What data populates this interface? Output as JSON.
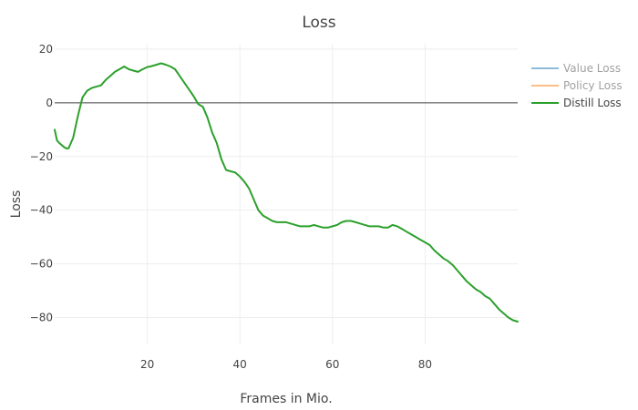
{
  "chart_data": {
    "type": "line",
    "title": "Loss",
    "xlabel": "Frames in Mio.",
    "ylabel": "Loss",
    "xlim": [
      0,
      100
    ],
    "ylim": [
      -90,
      22
    ],
    "x_ticks": [
      20,
      40,
      60,
      80
    ],
    "y_ticks": [
      20,
      0,
      -20,
      -40,
      -60,
      -80
    ],
    "x_tick_labels": [
      "20",
      "40",
      "60",
      "80"
    ],
    "y_tick_labels": [
      "20",
      "0",
      "−20",
      "−40",
      "−60",
      "−80"
    ],
    "grid": true,
    "legend_position": "top-right",
    "series": [
      {
        "name": "Value Loss",
        "color": "#1f77b4",
        "visible": false,
        "x": [],
        "y": []
      },
      {
        "name": "Policy Loss",
        "color": "#ff7f0e",
        "visible": false,
        "x": [],
        "y": []
      },
      {
        "name": "Distill Loss",
        "color": "#2ca02c",
        "visible": true,
        "x": [
          0,
          0.5,
          1,
          2,
          2.5,
          3,
          4,
          5,
          6,
          7,
          8,
          9,
          10,
          11,
          12,
          13,
          14,
          15,
          16,
          17,
          18,
          19,
          20,
          21,
          22,
          23,
          24,
          25,
          26,
          27,
          28,
          29,
          30,
          31,
          32,
          33,
          34,
          35,
          36,
          37,
          38,
          39,
          40,
          41,
          42,
          43,
          44,
          45,
          46,
          47,
          48,
          49,
          50,
          51,
          52,
          53,
          54,
          55,
          56,
          57,
          58,
          59,
          60,
          61,
          62,
          63,
          64,
          65,
          66,
          67,
          68,
          69,
          70,
          71,
          72,
          73,
          74,
          75,
          76,
          77,
          78,
          79,
          80,
          81,
          82,
          83,
          84,
          85,
          86,
          87,
          88,
          89,
          90,
          91,
          92,
          93,
          94,
          95,
          96,
          97,
          98,
          99,
          100
        ],
        "y": [
          -10,
          -14,
          -15,
          -16.5,
          -17,
          -17,
          -13,
          -5,
          2,
          4.5,
          5.5,
          6,
          6.5,
          8.5,
          10,
          11.5,
          12.5,
          13.5,
          12.5,
          12,
          11.5,
          12.5,
          13.3,
          13.7,
          14.2,
          14.7,
          14.2,
          13.5,
          12.5,
          10,
          7.5,
          5,
          2.5,
          -0.5,
          -1.5,
          -5.5,
          -11,
          -15,
          -21,
          -25,
          -25.5,
          -26,
          -27.5,
          -29.5,
          -32,
          -36,
          -40,
          -42,
          -43,
          -44,
          -44.5,
          -44.5,
          -44.5,
          -45,
          -45.5,
          -46,
          -46,
          -46,
          -45.5,
          -46,
          -46.5,
          -46.5,
          -46,
          -45.5,
          -44.5,
          -44,
          -44,
          -44.5,
          -45,
          -45.5,
          -46,
          -46,
          -46,
          -46.5,
          -46.5,
          -45.5,
          -46,
          -47,
          -48,
          -49,
          -50,
          -51,
          -52,
          -53,
          -55,
          -56.5,
          -58,
          -59,
          -60.5,
          -62.5,
          -64.5,
          -66.5,
          -68,
          -69.5,
          -70.5,
          -72,
          -73,
          -75,
          -77,
          -78.5,
          -80,
          -81,
          -81.5
        ]
      }
    ]
  }
}
